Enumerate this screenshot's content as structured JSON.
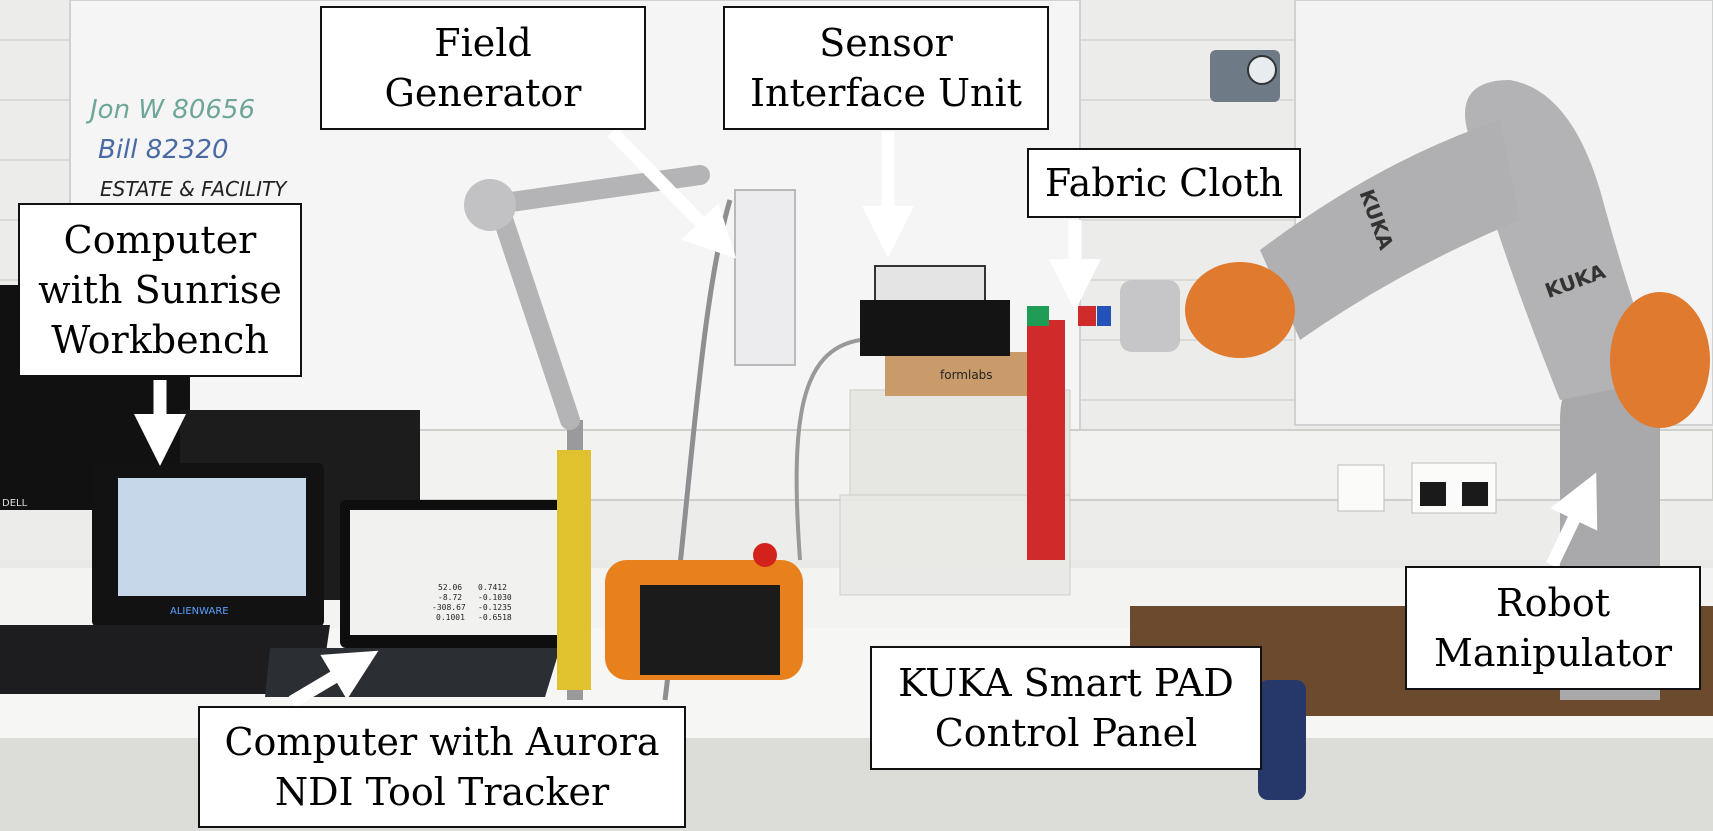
{
  "whiteboard": {
    "line1": "Jon W 80656",
    "line2": "Bill 82320",
    "line3": "ESTATE & FACILITY"
  },
  "labels": {
    "field_generator": [
      "Field",
      "Generator"
    ],
    "sensor_interface_unit": [
      "Sensor",
      "Interface Unit"
    ],
    "fabric_cloth": [
      "Fabric Cloth"
    ],
    "computer_sunrise": [
      "Computer",
      "with Sunrise",
      "Workbench"
    ],
    "robot_manipulator": [
      "Robot",
      "Manipulator"
    ],
    "kuka_smart_pad": [
      "KUKA Smart PAD",
      "Control Panel"
    ],
    "computer_aurora": [
      "Computer with Aurora",
      "NDI Tool Tracker"
    ]
  },
  "printed_text": {
    "kuka_upper": "KUKA",
    "kuka_lower": "KUKA",
    "alienware": "ALIENWARE",
    "formlabs": "formlabs",
    "dell": "DELL"
  },
  "tracker_readout": [
    [
      "52.06",
      "0.7412"
    ],
    [
      "-8.72",
      "-0.1030"
    ],
    [
      "-308.67",
      "-0.1235"
    ],
    [
      "0.1001",
      "-0.6518"
    ]
  ],
  "colors": {
    "robot_orange": "#e07a2e",
    "robot_grey": "#a9a9ab",
    "cloth_red": "#d12a2a",
    "pad_orange": "#e8801c",
    "arrow_white": "#ffffff"
  }
}
